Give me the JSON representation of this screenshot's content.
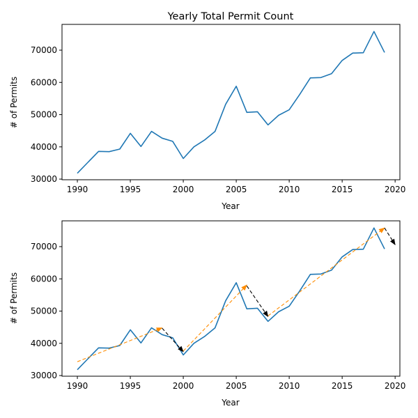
{
  "chart_data": [
    {
      "type": "line",
      "title": "Yearly Total Permit Count",
      "xlabel": "Year",
      "ylabel": "# of Permits",
      "xlim": [
        1988.55,
        2020.45
      ],
      "ylim": [
        29800,
        78000
      ],
      "xticks": [
        "1990",
        "1995",
        "2000",
        "2005",
        "2010",
        "2015",
        "2020"
      ],
      "yticks": [
        "30000",
        "40000",
        "50000",
        "60000",
        "70000"
      ],
      "grid": false,
      "color": "#1f77b4",
      "series": [
        {
          "x": [
            1990,
            1991,
            1992,
            1993,
            1994,
            1995,
            1996,
            1997,
            1998,
            1999,
            2000,
            2001,
            2002,
            2003,
            2004,
            2005,
            2006,
            2007,
            2008,
            2009,
            2010,
            2011,
            2012,
            2013,
            2014,
            2015,
            2016,
            2017,
            2018,
            2019
          ],
          "values": [
            31800,
            35200,
            38600,
            38500,
            39300,
            44200,
            40100,
            44800,
            42700,
            41700,
            36400,
            40000,
            42100,
            44800,
            53200,
            58800,
            50700,
            50900,
            46800,
            49800,
            51500,
            56300,
            61400,
            61500,
            62700,
            66800,
            69100,
            69200,
            75800,
            69300
          ]
        }
      ]
    },
    {
      "type": "line",
      "title": "",
      "xlabel": "Year",
      "ylabel": "# of Permits",
      "xlim": [
        1988.55,
        2020.45
      ],
      "ylim": [
        29800,
        78000
      ],
      "xticks": [
        "1990",
        "1995",
        "2000",
        "2005",
        "2010",
        "2015",
        "2020"
      ],
      "yticks": [
        "30000",
        "40000",
        "50000",
        "60000",
        "70000"
      ],
      "grid": false,
      "color": "#1f77b4",
      "series": [
        {
          "x": [
            1990,
            1991,
            1992,
            1993,
            1994,
            1995,
            1996,
            1997,
            1998,
            1999,
            2000,
            2001,
            2002,
            2003,
            2004,
            2005,
            2006,
            2007,
            2008,
            2009,
            2010,
            2011,
            2012,
            2013,
            2014,
            2015,
            2016,
            2017,
            2018,
            2019
          ],
          "values": [
            31800,
            35200,
            38600,
            38500,
            39300,
            44200,
            40100,
            44800,
            42700,
            41700,
            36400,
            40000,
            42100,
            44800,
            53200,
            58800,
            50700,
            50900,
            46800,
            49800,
            51500,
            56300,
            61400,
            61500,
            62700,
            66800,
            69100,
            69200,
            75800,
            69300
          ]
        }
      ],
      "annotations": [
        {
          "trend": "up",
          "color": "#ff8c00",
          "from": [
            1990,
            34300
          ],
          "to": [
            1998,
            44800
          ]
        },
        {
          "trend": "down",
          "color": "#000000",
          "from": [
            1998,
            44700
          ],
          "to": [
            2000,
            37400
          ]
        },
        {
          "trend": "up",
          "color": "#ff8c00",
          "from": [
            2000,
            37600
          ],
          "to": [
            2006,
            58100
          ]
        },
        {
          "trend": "down",
          "color": "#000000",
          "from": [
            2006,
            57800
          ],
          "to": [
            2008,
            48300
          ]
        },
        {
          "trend": "up",
          "color": "#ff8c00",
          "from": [
            2008,
            48500
          ],
          "to": [
            2019,
            75800
          ]
        },
        {
          "trend": "down",
          "color": "#000000",
          "from": [
            2019,
            75800
          ],
          "to": [
            2020,
            70600
          ]
        }
      ]
    }
  ]
}
